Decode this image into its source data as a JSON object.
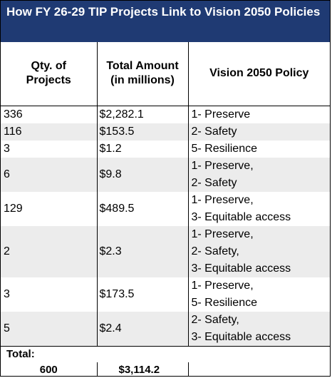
{
  "title": "How FY 26-29 TIP Projects Link to Vision 2050 Policies",
  "headers": {
    "qty_line1": "Qty. of",
    "qty_line2": "Projects",
    "amount_line1": "Total Amount",
    "amount_line2": "(in millions)",
    "policy": "Vision 2050 Policy"
  },
  "rows": [
    {
      "qty": "336",
      "amount": "$2,282.1",
      "policies": [
        "1- Preserve"
      ]
    },
    {
      "qty": "116",
      "amount": "$153.5",
      "policies": [
        "2- Safety"
      ]
    },
    {
      "qty": "3",
      "amount": "$1.2",
      "policies": [
        "5- Resilience"
      ]
    },
    {
      "qty": "6",
      "amount": "$9.8",
      "policies": [
        "1- Preserve,",
        "2- Safety"
      ]
    },
    {
      "qty": "129",
      "amount": "$489.5",
      "policies": [
        "1- Preserve,",
        "3- Equitable access"
      ]
    },
    {
      "qty": "2",
      "amount": "$2.3",
      "policies": [
        "1- Preserve,",
        "2- Safety,",
        "3- Equitable access"
      ]
    },
    {
      "qty": "3",
      "amount": "$173.5",
      "policies": [
        "1- Preserve,",
        "5- Resilience"
      ]
    },
    {
      "qty": "5",
      "amount": "$2.4",
      "policies": [
        "2- Safety,",
        "3- Equitable access"
      ]
    }
  ],
  "totals": {
    "label": "Total:",
    "qty": "600",
    "amount": "$3,114.2"
  },
  "colors": {
    "title_bg": "#1f3a73",
    "title_text": "#ffffff",
    "row_shade": "#ececec"
  }
}
